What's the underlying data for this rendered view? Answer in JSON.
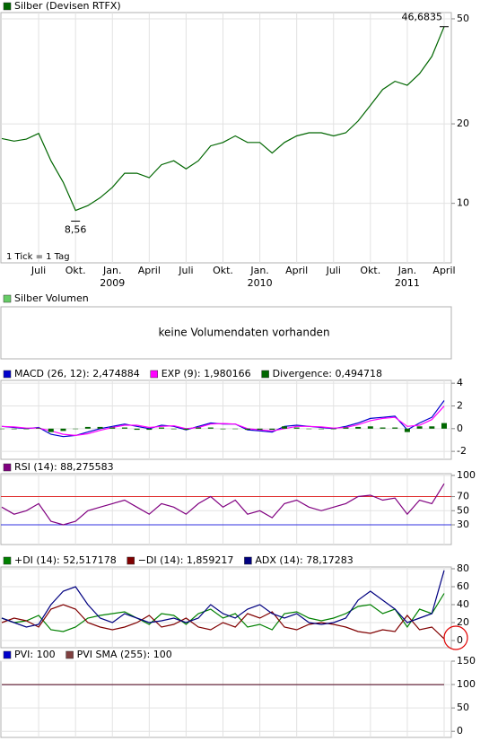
{
  "chart_data": [
    {
      "type": "line",
      "log_scale": true,
      "grid": true,
      "categories": [
        null,
        null,
        null,
        "Juli",
        null,
        null,
        "Okt.",
        null,
        null,
        "Jan.",
        null,
        null,
        "April",
        null,
        null,
        "Juli",
        null,
        null,
        "Okt.",
        null,
        null,
        "Jan.",
        null,
        null,
        "April",
        null,
        null,
        "Juli",
        null,
        null,
        "Okt.",
        null,
        null,
        "Jan.",
        null,
        null,
        "April"
      ],
      "year_labels": [
        null,
        null,
        null,
        null,
        null,
        null,
        null,
        null,
        null,
        "2009",
        null,
        null,
        null,
        null,
        null,
        null,
        null,
        null,
        null,
        null,
        null,
        "2010",
        null,
        null,
        null,
        null,
        null,
        null,
        null,
        null,
        null,
        null,
        null,
        "2011",
        null,
        null,
        null
      ],
      "series": [
        {
          "name": "Silber (Devisen RTFX)",
          "color": "#006600",
          "values": [
            17.6,
            17.2,
            17.5,
            18.4,
            14.5,
            12,
            9.4,
            9.8,
            10.5,
            11.5,
            13,
            13,
            12.5,
            14,
            14.5,
            13.5,
            14.5,
            16.5,
            17,
            18,
            17,
            17,
            15.5,
            17,
            18,
            18.5,
            18.5,
            18,
            18.5,
            20.5,
            23.5,
            27,
            29,
            28,
            31,
            36,
            46.68
          ]
        }
      ],
      "ylim": [
        5.95,
        52.8
      ],
      "yticks": [
        10,
        20,
        50
      ],
      "annotations": [
        {
          "value": 46.6835,
          "label": "46,6835"
        },
        {
          "value": 8.56,
          "label": "8,56"
        }
      ],
      "footnote": "1 Tick = 1 Tag"
    },
    {
      "type": "empty",
      "series_name": "Silber Volumen",
      "color": "#66cc66",
      "message": "keine Volumendaten vorhanden"
    },
    {
      "type": "line",
      "grid": true,
      "series": [
        {
          "name": "MACD (26, 12): 2,474884",
          "color": "#0000cc",
          "values": [
            0.2,
            0.1,
            0,
            0.1,
            -0.5,
            -0.7,
            -0.6,
            -0.3,
            0,
            0.2,
            0.4,
            0.2,
            0,
            0.3,
            0.2,
            -0.1,
            0.2,
            0.5,
            0.4,
            0.4,
            -0.1,
            -0.2,
            -0.3,
            0.2,
            0.3,
            0.2,
            0.1,
            0,
            0.2,
            0.5,
            0.9,
            1.0,
            1.1,
            -0.1,
            0.5,
            1.0,
            2.47
          ]
        },
        {
          "name": "EXP (9): 1,980166",
          "color": "#ff00ff",
          "values": [
            0.2,
            0.15,
            0.05,
            0.05,
            -0.2,
            -0.5,
            -0.6,
            -0.45,
            -0.15,
            0.1,
            0.3,
            0.3,
            0.1,
            0.2,
            0.25,
            0,
            0.1,
            0.4,
            0.45,
            0.4,
            0,
            -0.1,
            -0.2,
            0,
            0.2,
            0.2,
            0.15,
            0.05,
            0.1,
            0.35,
            0.7,
            0.9,
            1.0,
            0.2,
            0.3,
            0.8,
            1.98
          ]
        },
        {
          "name": "Divergence: 0,494718",
          "color": "#006600",
          "style": "bar",
          "values": [
            0,
            -0.05,
            -0.05,
            0.05,
            -0.3,
            -0.2,
            0,
            0.15,
            0.15,
            0.1,
            0.1,
            -0.1,
            -0.1,
            0.1,
            -0.05,
            -0.1,
            0.1,
            0.1,
            -0.05,
            0,
            -0.1,
            -0.1,
            -0.1,
            0.2,
            0.1,
            0,
            -0.05,
            -0.05,
            0.1,
            0.15,
            0.2,
            0.1,
            0.1,
            -0.3,
            0.2,
            0.2,
            0.49
          ]
        }
      ],
      "ylim": [
        -2.7,
        4.25
      ],
      "yticks": [
        4,
        2,
        0,
        -2
      ]
    },
    {
      "type": "line",
      "grid": true,
      "series": [
        {
          "name": "RSI (14): 88,275583",
          "color": "#800080",
          "values": [
            55,
            45,
            50,
            60,
            35,
            30,
            35,
            50,
            55,
            60,
            65,
            55,
            45,
            60,
            55,
            45,
            60,
            70,
            55,
            65,
            45,
            50,
            40,
            60,
            65,
            55,
            50,
            55,
            60,
            70,
            72,
            65,
            68,
            45,
            65,
            60,
            88.28
          ]
        }
      ],
      "ylim": [
        2,
        102.5
      ],
      "yticks": [
        100,
        70,
        50,
        30
      ],
      "reference_lines": [
        {
          "value": 70,
          "color": "#e03030"
        },
        {
          "value": 30,
          "color": "#3030e0"
        }
      ]
    },
    {
      "type": "line",
      "grid": true,
      "series": [
        {
          "name": "+DI (14): 52,517178",
          "color": "#008000",
          "values": [
            25,
            20,
            22,
            28,
            12,
            10,
            15,
            25,
            28,
            30,
            32,
            25,
            18,
            30,
            28,
            18,
            30,
            35,
            25,
            30,
            15,
            18,
            12,
            30,
            32,
            25,
            22,
            25,
            30,
            38,
            40,
            30,
            35,
            15,
            35,
            30,
            52.5
          ]
        },
        {
          "name": "−DI (14): 1,859217",
          "color": "#800000",
          "values": [
            20,
            25,
            22,
            15,
            35,
            40,
            35,
            20,
            15,
            12,
            15,
            20,
            28,
            15,
            18,
            25,
            15,
            12,
            20,
            15,
            30,
            25,
            32,
            15,
            12,
            18,
            20,
            18,
            15,
            10,
            8,
            12,
            10,
            28,
            12,
            15,
            1.86
          ]
        },
        {
          "name": "ADX (14): 78,17283",
          "color": "#000080",
          "values": [
            25,
            20,
            15,
            18,
            40,
            55,
            60,
            40,
            25,
            20,
            30,
            25,
            20,
            22,
            25,
            20,
            25,
            40,
            30,
            25,
            35,
            40,
            30,
            25,
            30,
            20,
            18,
            20,
            25,
            45,
            55,
            45,
            35,
            20,
            25,
            30,
            78.17
          ]
        }
      ],
      "ylim": [
        -8,
        82
      ],
      "yticks": [
        80,
        60,
        40,
        20,
        0
      ]
    },
    {
      "type": "line",
      "grid": true,
      "series": [
        {
          "name": "PVI: 100",
          "color": "#0000cc",
          "values": [
            100,
            100,
            100,
            100,
            100,
            100,
            100,
            100,
            100,
            100,
            100,
            100,
            100,
            100,
            100,
            100,
            100,
            100,
            100,
            100,
            100,
            100,
            100,
            100,
            100,
            100,
            100,
            100,
            100,
            100,
            100,
            100,
            100,
            100,
            100,
            100,
            100
          ]
        },
        {
          "name": "PVI SMA (255): 100",
          "color": "#804040",
          "values": [
            100,
            100,
            100,
            100,
            100,
            100,
            100,
            100,
            100,
            100,
            100,
            100,
            100,
            100,
            100,
            100,
            100,
            100,
            100,
            100,
            100,
            100,
            100,
            100,
            100,
            100,
            100,
            100,
            100,
            100,
            100,
            100,
            100,
            100,
            100,
            100,
            100
          ]
        }
      ],
      "ylim": [
        -13,
        150
      ],
      "yticks": [
        150,
        100,
        50,
        0
      ]
    }
  ]
}
